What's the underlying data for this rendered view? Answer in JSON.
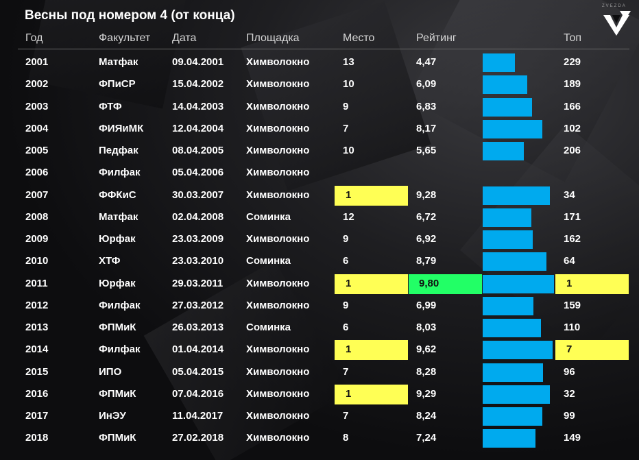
{
  "title": "Весны под номером 4 (от конца)",
  "logo_text": "ZVEZDA",
  "colors": {
    "bar": "#00aaee",
    "highlight_top": "#ffff55",
    "highlight_max": "#22ff66",
    "background": "#0c0c0e"
  },
  "columns": {
    "year": "Год",
    "faculty": "Факультет",
    "date": "Дата",
    "venue": "Площадка",
    "place": "Место",
    "rating": "Рейтинг",
    "top": "Топ"
  },
  "chart_data": {
    "type": "table",
    "rating_scale": [
      0,
      10
    ],
    "rows": [
      {
        "year": "2001",
        "faculty": "Матфак",
        "date": "09.04.2001",
        "venue": "Химволокно",
        "place": "13",
        "rating": "4,47",
        "rating_value": 4.47,
        "top": "229",
        "place_highlight": false,
        "top_highlight": false,
        "rating_highlight": false
      },
      {
        "year": "2002",
        "faculty": "ФПиСР",
        "date": "15.04.2002",
        "venue": "Химволокно",
        "place": "10",
        "rating": "6,09",
        "rating_value": 6.09,
        "top": "189",
        "place_highlight": false,
        "top_highlight": false,
        "rating_highlight": false
      },
      {
        "year": "2003",
        "faculty": "ФТФ",
        "date": "14.04.2003",
        "venue": "Химволокно",
        "place": "9",
        "rating": "6,83",
        "rating_value": 6.83,
        "top": "166",
        "place_highlight": false,
        "top_highlight": false,
        "rating_highlight": false
      },
      {
        "year": "2004",
        "faculty": "ФИЯиМК",
        "date": "12.04.2004",
        "venue": "Химволокно",
        "place": "7",
        "rating": "8,17",
        "rating_value": 8.17,
        "top": "102",
        "place_highlight": false,
        "top_highlight": false,
        "rating_highlight": false
      },
      {
        "year": "2005",
        "faculty": "Педфак",
        "date": "08.04.2005",
        "venue": "Химволокно",
        "place": "10",
        "rating": "5,65",
        "rating_value": 5.65,
        "top": "206",
        "place_highlight": false,
        "top_highlight": false,
        "rating_highlight": false
      },
      {
        "year": "2006",
        "faculty": "Филфак",
        "date": "05.04.2006",
        "venue": "Химволокно",
        "place": "",
        "rating": "",
        "rating_value": null,
        "top": "",
        "place_highlight": false,
        "top_highlight": false,
        "rating_highlight": false
      },
      {
        "year": "2007",
        "faculty": "ФФКиС",
        "date": "30.03.2007",
        "venue": "Химволокно",
        "place": "1",
        "rating": "9,28",
        "rating_value": 9.28,
        "top": "34",
        "place_highlight": true,
        "top_highlight": false,
        "rating_highlight": false
      },
      {
        "year": "2008",
        "faculty": "Матфак",
        "date": "02.04.2008",
        "venue": "Соминка",
        "place": "12",
        "rating": "6,72",
        "rating_value": 6.72,
        "top": "171",
        "place_highlight": false,
        "top_highlight": false,
        "rating_highlight": false
      },
      {
        "year": "2009",
        "faculty": "Юрфак",
        "date": "23.03.2009",
        "venue": "Химволокно",
        "place": "9",
        "rating": "6,92",
        "rating_value": 6.92,
        "top": "162",
        "place_highlight": false,
        "top_highlight": false,
        "rating_highlight": false
      },
      {
        "year": "2010",
        "faculty": "ХТФ",
        "date": "23.03.2010",
        "venue": "Соминка",
        "place": "6",
        "rating": "8,79",
        "rating_value": 8.79,
        "top": "64",
        "place_highlight": false,
        "top_highlight": false,
        "rating_highlight": false
      },
      {
        "year": "2011",
        "faculty": "Юрфак",
        "date": "29.03.2011",
        "venue": "Химволокно",
        "place": "1",
        "rating": "9,80",
        "rating_value": 9.8,
        "top": "1",
        "place_highlight": true,
        "top_highlight": true,
        "rating_highlight": true
      },
      {
        "year": "2012",
        "faculty": "Филфак",
        "date": "27.03.2012",
        "venue": "Химволокно",
        "place": "9",
        "rating": "6,99",
        "rating_value": 6.99,
        "top": "159",
        "place_highlight": false,
        "top_highlight": false,
        "rating_highlight": false
      },
      {
        "year": "2013",
        "faculty": "ФПМиК",
        "date": "26.03.2013",
        "venue": "Соминка",
        "place": "6",
        "rating": "8,03",
        "rating_value": 8.03,
        "top": "110",
        "place_highlight": false,
        "top_highlight": false,
        "rating_highlight": false
      },
      {
        "year": "2014",
        "faculty": "Филфак",
        "date": "01.04.2014",
        "venue": "Химволокно",
        "place": "1",
        "rating": "9,62",
        "rating_value": 9.62,
        "top": "7",
        "place_highlight": true,
        "top_highlight": true,
        "rating_highlight": false
      },
      {
        "year": "2015",
        "faculty": "ИПО",
        "date": "05.04.2015",
        "venue": "Химволокно",
        "place": "7",
        "rating": "8,28",
        "rating_value": 8.28,
        "top": "96",
        "place_highlight": false,
        "top_highlight": false,
        "rating_highlight": false
      },
      {
        "year": "2016",
        "faculty": "ФПМиК",
        "date": "07.04.2016",
        "venue": "Химволокно",
        "place": "1",
        "rating": "9,29",
        "rating_value": 9.29,
        "top": "32",
        "place_highlight": true,
        "top_highlight": false,
        "rating_highlight": false
      },
      {
        "year": "2017",
        "faculty": "ИнЭУ",
        "date": "11.04.2017",
        "venue": "Химволокно",
        "place": "7",
        "rating": "8,24",
        "rating_value": 8.24,
        "top": "99",
        "place_highlight": false,
        "top_highlight": false,
        "rating_highlight": false
      },
      {
        "year": "2018",
        "faculty": "ФПМиК",
        "date": "27.02.2018",
        "venue": "Химволокно",
        "place": "8",
        "rating": "7,24",
        "rating_value": 7.24,
        "top": "149",
        "place_highlight": false,
        "top_highlight": false,
        "rating_highlight": false
      }
    ]
  }
}
